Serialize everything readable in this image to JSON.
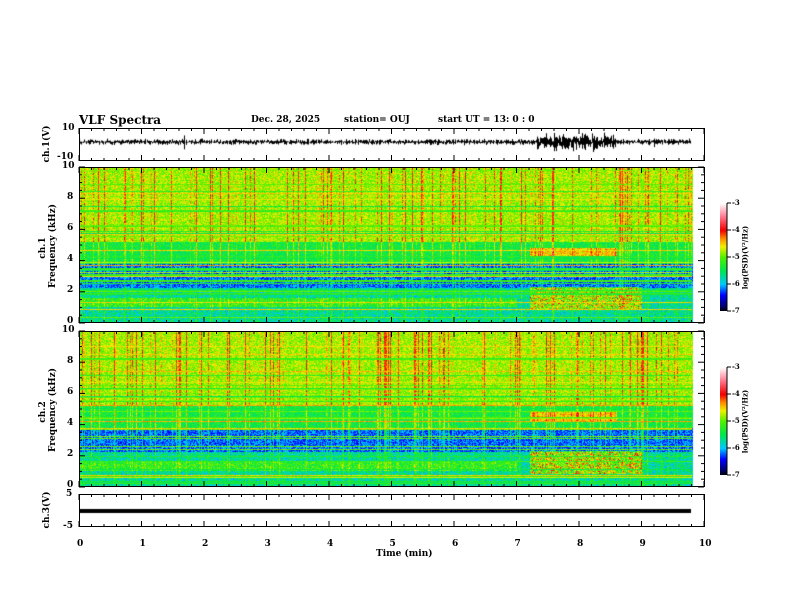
{
  "header": {
    "title": "VLF Spectra",
    "date": "Dec. 28, 2025",
    "station": "station= OUJ",
    "start_ut": "start  UT =   13: 0  : 0"
  },
  "chart_data": [
    {
      "type": "line",
      "name": "ch1-waveform",
      "ylabel": "ch.1(V)",
      "ylim": [
        -10,
        10
      ],
      "yticks": [
        "10",
        "-10"
      ],
      "xlim": [
        0,
        10
      ],
      "burst_minutes": [
        7.3,
        8.6
      ],
      "data_end_min": 9.8
    },
    {
      "type": "heatmap",
      "name": "ch1-spectrogram",
      "ylabel": "ch.1\nFrequency (kHz)",
      "ylabel_lines": [
        "ch.1",
        "Frequency (kHz)"
      ],
      "ylim": [
        0,
        10
      ],
      "yticks": [
        "0",
        "2",
        "4",
        "6",
        "8",
        "10"
      ],
      "xlim": [
        0,
        10
      ],
      "colorbar": {
        "label": "log(PSD)(V²/Hz)",
        "range": [
          -7,
          -3
        ],
        "ticks": [
          "-3",
          "-4",
          "-5",
          "-6",
          "-7"
        ]
      }
    },
    {
      "type": "heatmap",
      "name": "ch2-spectrogram",
      "ylabel_lines": [
        "ch.2",
        "Frequency (kHz)"
      ],
      "ylim": [
        0,
        10
      ],
      "yticks": [
        "0",
        "2",
        "4",
        "6",
        "8",
        "10"
      ],
      "xlim": [
        0,
        10
      ],
      "colorbar": {
        "label": "log(PSD)(V²/Hz)",
        "range": [
          -7,
          -3
        ],
        "ticks": [
          "-3",
          "-4",
          "-5",
          "-6",
          "-7"
        ]
      }
    },
    {
      "type": "line",
      "name": "ch3-waveform",
      "ylabel": "ch.3(V)",
      "ylim": [
        -5,
        5
      ],
      "yticks": [
        "5",
        "-5"
      ],
      "constant_value": -0.3,
      "xlim": [
        0,
        10
      ]
    }
  ],
  "xaxis": {
    "label": "Time (min)",
    "ticks": [
      "0",
      "1",
      "2",
      "3",
      "4",
      "5",
      "6",
      "7",
      "8",
      "9",
      "10"
    ]
  },
  "colors": {
    "trace": "#000000",
    "background": "#ffffff"
  }
}
